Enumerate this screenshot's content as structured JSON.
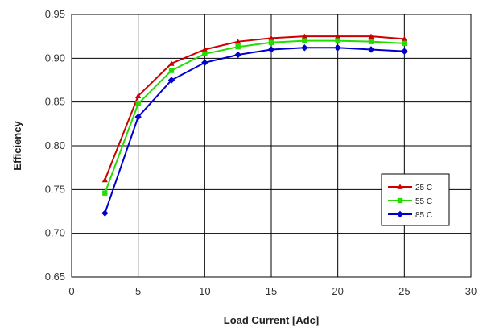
{
  "chart_data": {
    "type": "line",
    "title": "",
    "xlabel": "Load Current [Adc]",
    "ylabel": "Efficiency",
    "xlim": [
      0,
      30
    ],
    "ylim": [
      0.65,
      0.95
    ],
    "x_ticks": [
      0,
      5,
      10,
      15,
      20,
      25,
      30
    ],
    "x_tick_labels": [
      "0",
      "5",
      "10",
      "15",
      "20",
      "25",
      "30"
    ],
    "y_ticks": [
      0.65,
      0.7,
      0.75,
      0.8,
      0.85,
      0.9,
      0.95
    ],
    "y_tick_labels": [
      "0.65",
      "0.70",
      "0.75",
      "0.80",
      "0.85",
      "0.90",
      "0.95"
    ],
    "grid": true,
    "legend_position": "right",
    "x": [
      2.5,
      5,
      7.5,
      10,
      12.5,
      15,
      17.5,
      20,
      22.5,
      25
    ],
    "series": [
      {
        "name": "25 C",
        "color": "#cc0000",
        "marker": "triangle",
        "values": [
          0.761,
          0.857,
          0.894,
          0.91,
          0.919,
          0.923,
          0.925,
          0.925,
          0.925,
          0.922
        ]
      },
      {
        "name": "55 C",
        "color": "#22dd00",
        "marker": "square",
        "values": [
          0.746,
          0.848,
          0.886,
          0.905,
          0.913,
          0.918,
          0.92,
          0.92,
          0.919,
          0.917
        ]
      },
      {
        "name": "85 C",
        "color": "#0000cc",
        "marker": "diamond",
        "values": [
          0.723,
          0.833,
          0.875,
          0.895,
          0.904,
          0.91,
          0.912,
          0.912,
          0.91,
          0.908
        ]
      }
    ]
  }
}
